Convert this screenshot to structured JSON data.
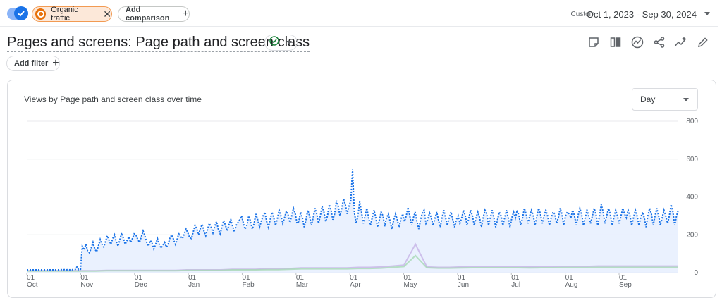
{
  "top_bar": {
    "comparison_chip": "Organic traffic",
    "add_comparison": "Add comparison",
    "range_type": "Custom",
    "date_range": "Oct 1, 2023 - Sep 30, 2024"
  },
  "report": {
    "title": "Pages and screens: Page path and screen class",
    "add_filter": "Add filter"
  },
  "card": {
    "title": "Views by Page path and screen class over time",
    "granularity": "Day"
  },
  "colors": {
    "main_series": "#1a73e8",
    "area_fill": "#e8f0fe",
    "secondary_series": [
      "#9fc5f8",
      "#c5b3e6",
      "#a8dab5",
      "#b39ddb"
    ]
  },
  "chart_data": {
    "type": "line",
    "x_ticks": [
      {
        "day": "01",
        "month": "Oct"
      },
      {
        "day": "01",
        "month": "Nov"
      },
      {
        "day": "01",
        "month": "Dec"
      },
      {
        "day": "01",
        "month": "Jan"
      },
      {
        "day": "01",
        "month": "Feb"
      },
      {
        "day": "01",
        "month": "Mar"
      },
      {
        "day": "01",
        "month": "Apr"
      },
      {
        "day": "01",
        "month": "May"
      },
      {
        "day": "01",
        "month": "Jun"
      },
      {
        "day": "01",
        "month": "Jul"
      },
      {
        "day": "01",
        "month": "Aug"
      },
      {
        "day": "01",
        "month": "Sep"
      }
    ],
    "y_ticks": [
      "800",
      "600",
      "400",
      "200",
      "0"
    ],
    "ylim": [
      0,
      800
    ],
    "grid": true,
    "x_start": "2023-10-01",
    "x_end": "2024-09-30",
    "series": [
      {
        "values": [
          15,
          15,
          15,
          15,
          15,
          15,
          15,
          15,
          15,
          15,
          15,
          15,
          15,
          15,
          15,
          15,
          15,
          15,
          15,
          16,
          15,
          16,
          15,
          16,
          15,
          16,
          15,
          16,
          30,
          16,
          18,
          140,
          120,
          150,
          115,
          105,
          130,
          160,
          125,
          110,
          140,
          175,
          150,
          135,
          165,
          195,
          170,
          150,
          180,
          200,
          165,
          140,
          175,
          210,
          180,
          150,
          170,
          190,
          160,
          180,
          205,
          200,
          175,
          160,
          190,
          220,
          195,
          160,
          140,
          170,
          155,
          125,
          150,
          180,
          150,
          130,
          145,
          160,
          135,
          150,
          185,
          200,
          175,
          150,
          175,
          210,
          190,
          180,
          205,
          230,
          210,
          185,
          180,
          215,
          250,
          230,
          200,
          235,
          255,
          220,
          195,
          230,
          260,
          240,
          210,
          245,
          270,
          230,
          205,
          240,
          275,
          250,
          220,
          255,
          280,
          245,
          215,
          250,
          265,
          280,
          300,
          260,
          230,
          250,
          300,
          270,
          230,
          260,
          310,
          280,
          240,
          270,
          300,
          320,
          270,
          240,
          280,
          320,
          290,
          250,
          285,
          330,
          300,
          260,
          290,
          325,
          305,
          265,
          300,
          340,
          310,
          260,
          270,
          320,
          290,
          240,
          280,
          330,
          300,
          250,
          290,
          340,
          310,
          260,
          300,
          350,
          320,
          270,
          300,
          360,
          330,
          280,
          310,
          380,
          350,
          300,
          340,
          390,
          360,
          310,
          350,
          380,
          545,
          320,
          260,
          300,
          375,
          320,
          260,
          300,
          340,
          290,
          250,
          290,
          330,
          290,
          240,
          280,
          320,
          300,
          245,
          290,
          310,
          270,
          230,
          280,
          310,
          280,
          240,
          280,
          310,
          270,
          300,
          345,
          300,
          250,
          290,
          320,
          270,
          230,
          280,
          315,
          330,
          260,
          280,
          315,
          290,
          250,
          285,
          320,
          280,
          240,
          290,
          330,
          290,
          250,
          290,
          320,
          280,
          240,
          280,
          300,
          260,
          290,
          330,
          300,
          250,
          290,
          330,
          300,
          250,
          290,
          320,
          290,
          240,
          290,
          330,
          310,
          250,
          290,
          330,
          290,
          240,
          280,
          320,
          300,
          250,
          290,
          330,
          290,
          240,
          290,
          320,
          290,
          330,
          300,
          250,
          290,
          340,
          310,
          260,
          300,
          330,
          300,
          250,
          300,
          340,
          310,
          260,
          300,
          330,
          300,
          250,
          290,
          320,
          310,
          260,
          290,
          340,
          310,
          250,
          300,
          320,
          310,
          290,
          330,
          300,
          250,
          300,
          340,
          310,
          250,
          290,
          330,
          300,
          260,
          300,
          340,
          310,
          250,
          300,
          360,
          320,
          260,
          300,
          340,
          310,
          250,
          290,
          330,
          300,
          260,
          300,
          340,
          310,
          290,
          330,
          300,
          250,
          290,
          330,
          300,
          250,
          290,
          320,
          290,
          240,
          300,
          340,
          310,
          250,
          300,
          340,
          300,
          250,
          290,
          330,
          300,
          260,
          300,
          360,
          320,
          250,
          300,
          330
        ]
      },
      {
        "values": [
          10,
          10,
          10,
          10,
          10,
          10,
          10,
          12,
          12,
          12,
          12,
          12,
          12,
          12,
          15,
          15,
          15,
          15,
          18,
          18,
          18,
          20,
          20,
          22,
          25,
          25,
          25,
          25,
          25,
          28,
          28,
          30,
          35,
          40,
          150,
          30,
          28,
          28,
          30,
          32,
          32,
          32,
          32,
          32,
          30,
          32,
          32,
          33,
          33,
          33,
          35,
          35,
          35,
          35,
          35,
          35,
          35,
          35
        ]
      },
      {
        "values": [
          8,
          8,
          8,
          8,
          8,
          8,
          8,
          10,
          10,
          10,
          10,
          10,
          10,
          10,
          12,
          12,
          12,
          12,
          15,
          15,
          15,
          16,
          16,
          18,
          20,
          20,
          20,
          20,
          20,
          22,
          22,
          24,
          28,
          32,
          90,
          26,
          24,
          24,
          25,
          26,
          26,
          26,
          26,
          26,
          25,
          26,
          26,
          27,
          27,
          27,
          28,
          28,
          28,
          28,
          28,
          28,
          28,
          28
        ]
      }
    ]
  }
}
